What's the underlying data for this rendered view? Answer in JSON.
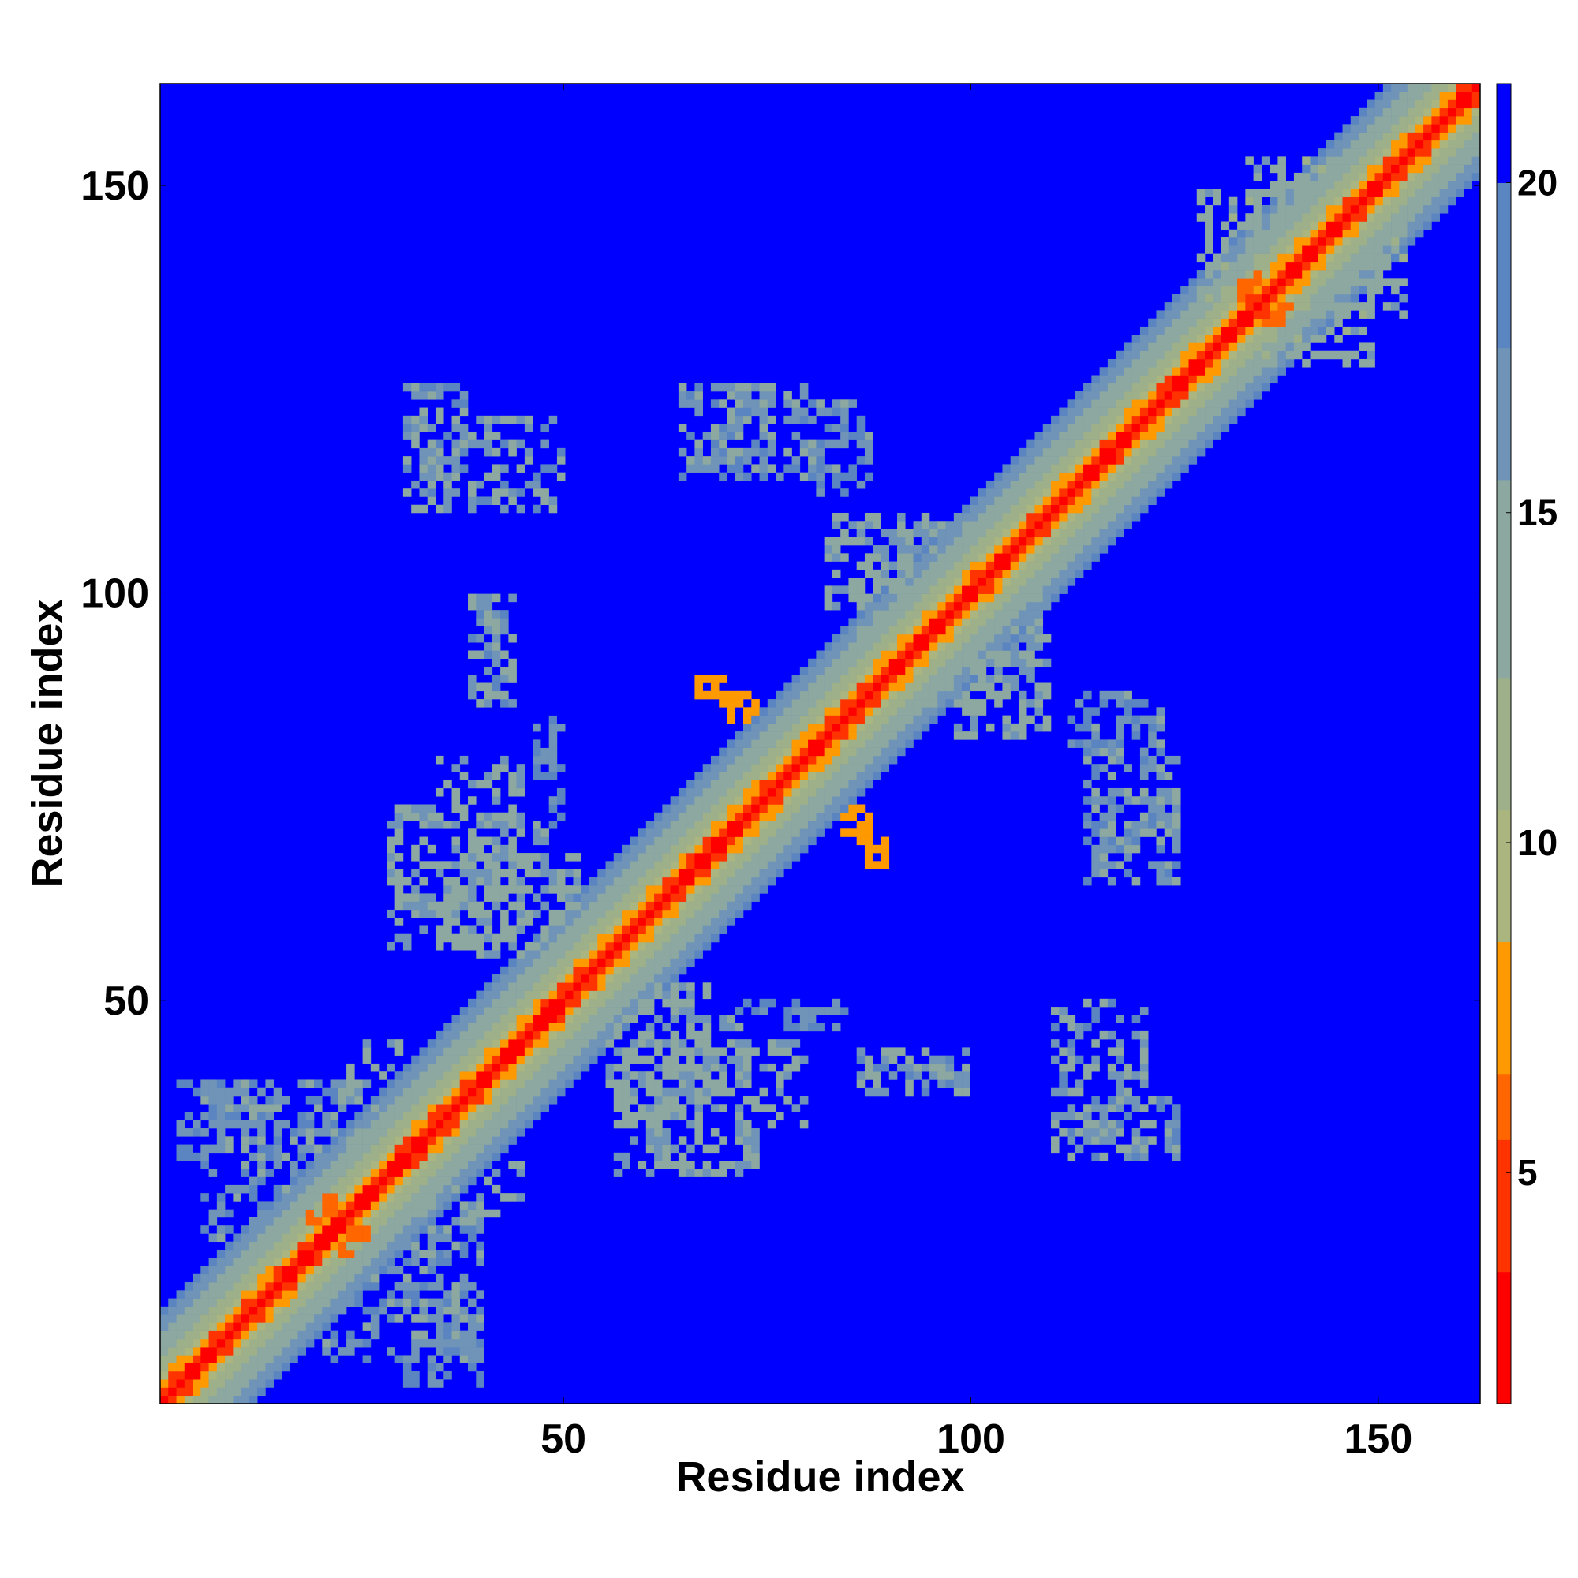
{
  "chart_data": {
    "type": "heatmap",
    "title": "",
    "xlabel": "Residue index",
    "ylabel": "Residue index",
    "n_residues": 163,
    "xlim": [
      0.5,
      162.5
    ],
    "ylim": [
      0.5,
      162.5
    ],
    "x_ticks": [
      50,
      100,
      150
    ],
    "y_ticks": [
      50,
      100,
      150
    ],
    "x_tick_labels": [
      "50",
      "100",
      "150"
    ],
    "y_tick_labels": [
      "50",
      "100",
      "150"
    ],
    "grid": false,
    "legend": "none",
    "colorbar": {
      "placement": "right",
      "min": 1.5,
      "max": 21.5,
      "ticks": [
        5,
        10,
        15,
        20
      ],
      "tick_labels": [
        "5",
        "10",
        "15",
        "20"
      ],
      "bands": [
        {
          "from": 1.5,
          "to": 3.5,
          "color": "#ff0000"
        },
        {
          "from": 3.5,
          "to": 5.5,
          "color": "#ff3300"
        },
        {
          "from": 5.5,
          "to": 6.5,
          "color": "#ff6600"
        },
        {
          "from": 6.5,
          "to": 8.5,
          "color": "#ff9900"
        },
        {
          "from": 8.5,
          "to": 10.5,
          "color": "#aab57f"
        },
        {
          "from": 10.5,
          "to": 12.5,
          "color": "#9db08a"
        },
        {
          "from": 12.5,
          "to": 15.5,
          "color": "#8ca8a0"
        },
        {
          "from": 15.5,
          "to": 17.5,
          "color": "#6f94b8"
        },
        {
          "from": 17.5,
          "to": 20.0,
          "color": "#5b85c0"
        },
        {
          "from": 20.0,
          "to": 21.5,
          "color": "#0000ff"
        }
      ]
    },
    "background_value": 21,
    "diagonal_profile": [
      {
        "offset": 0,
        "value": 2
      },
      {
        "offset": 1,
        "value": 4
      },
      {
        "offset": 2,
        "value": 7
      },
      {
        "offset": 3,
        "value": 9
      },
      {
        "offset": 4,
        "value": 11
      },
      {
        "offset": 5,
        "value": 12
      },
      {
        "offset": 6,
        "value": 13
      },
      {
        "offset": 7,
        "value": 14
      },
      {
        "offset": 8,
        "value": 15
      },
      {
        "offset": 9,
        "value": 16
      },
      {
        "offset": 10,
        "value": 17
      },
      {
        "offset": 11,
        "value": 18
      }
    ],
    "contact_regions": [
      {
        "i": [
          5,
          12
        ],
        "j": [
          20,
          40
        ],
        "value": 17
      },
      {
        "i": [
          12,
          22
        ],
        "j": [
          22,
          40
        ],
        "value": 17
      },
      {
        "i": [
          22,
          30
        ],
        "j": [
          28,
          45
        ],
        "value": 15
      },
      {
        "i": [
          30,
          40
        ],
        "j": [
          2,
          15
        ],
        "value": 17
      },
      {
        "i": [
          28,
          34
        ],
        "j": [
          60,
          74
        ],
        "value": 15
      },
      {
        "i": [
          34,
          45
        ],
        "j": [
          55,
          80
        ],
        "value": 15
      },
      {
        "i": [
          46,
          50
        ],
        "j": [
          70,
          84
        ],
        "value": 18
      },
      {
        "i": [
          38,
          44
        ],
        "j": [
          86,
          100
        ],
        "value": 16
      },
      {
        "i": [
          30,
          38
        ],
        "j": [
          114,
          126
        ],
        "value": 17
      },
      {
        "i": [
          56,
          68
        ],
        "j": [
          28,
          52
        ],
        "value": 15
      },
      {
        "i": [
          66,
          72
        ],
        "j": [
          38,
          48
        ],
        "value": 15
      },
      {
        "i": [
          78,
          86
        ],
        "j": [
          46,
          50
        ],
        "value": 18
      },
      {
        "i": [
          68,
          76
        ],
        "j": [
          114,
          126
        ],
        "value": 17
      },
      {
        "i": [
          80,
          88
        ],
        "j": [
          112,
          124
        ],
        "value": 17
      },
      {
        "i": [
          86,
          98
        ],
        "j": [
          94,
          108
        ],
        "value": 15
      },
      {
        "i": [
          98,
          110
        ],
        "j": [
          82,
          100
        ],
        "value": 15
      },
      {
        "i": [
          110,
          122
        ],
        "j": [
          30,
          50
        ],
        "value": 16
      },
      {
        "i": [
          114,
          126
        ],
        "j": [
          64,
          82
        ],
        "value": 16
      },
      {
        "i": [
          128,
          138
        ],
        "j": [
          128,
          150
        ],
        "value": 14
      },
      {
        "i": [
          138,
          154
        ],
        "j": [
          134,
          150
        ],
        "value": 14
      },
      {
        "i": [
          66,
          70
        ],
        "j": [
          86,
          90
        ],
        "value": 7
      },
      {
        "i": [
          84,
          88
        ],
        "j": [
          70,
          74
        ],
        "value": 7
      },
      {
        "i": [
          18,
          22
        ],
        "j": [
          22,
          26
        ],
        "value": 6
      },
      {
        "i": [
          133,
          137
        ],
        "j": [
          136,
          140
        ],
        "value": 6
      }
    ]
  }
}
